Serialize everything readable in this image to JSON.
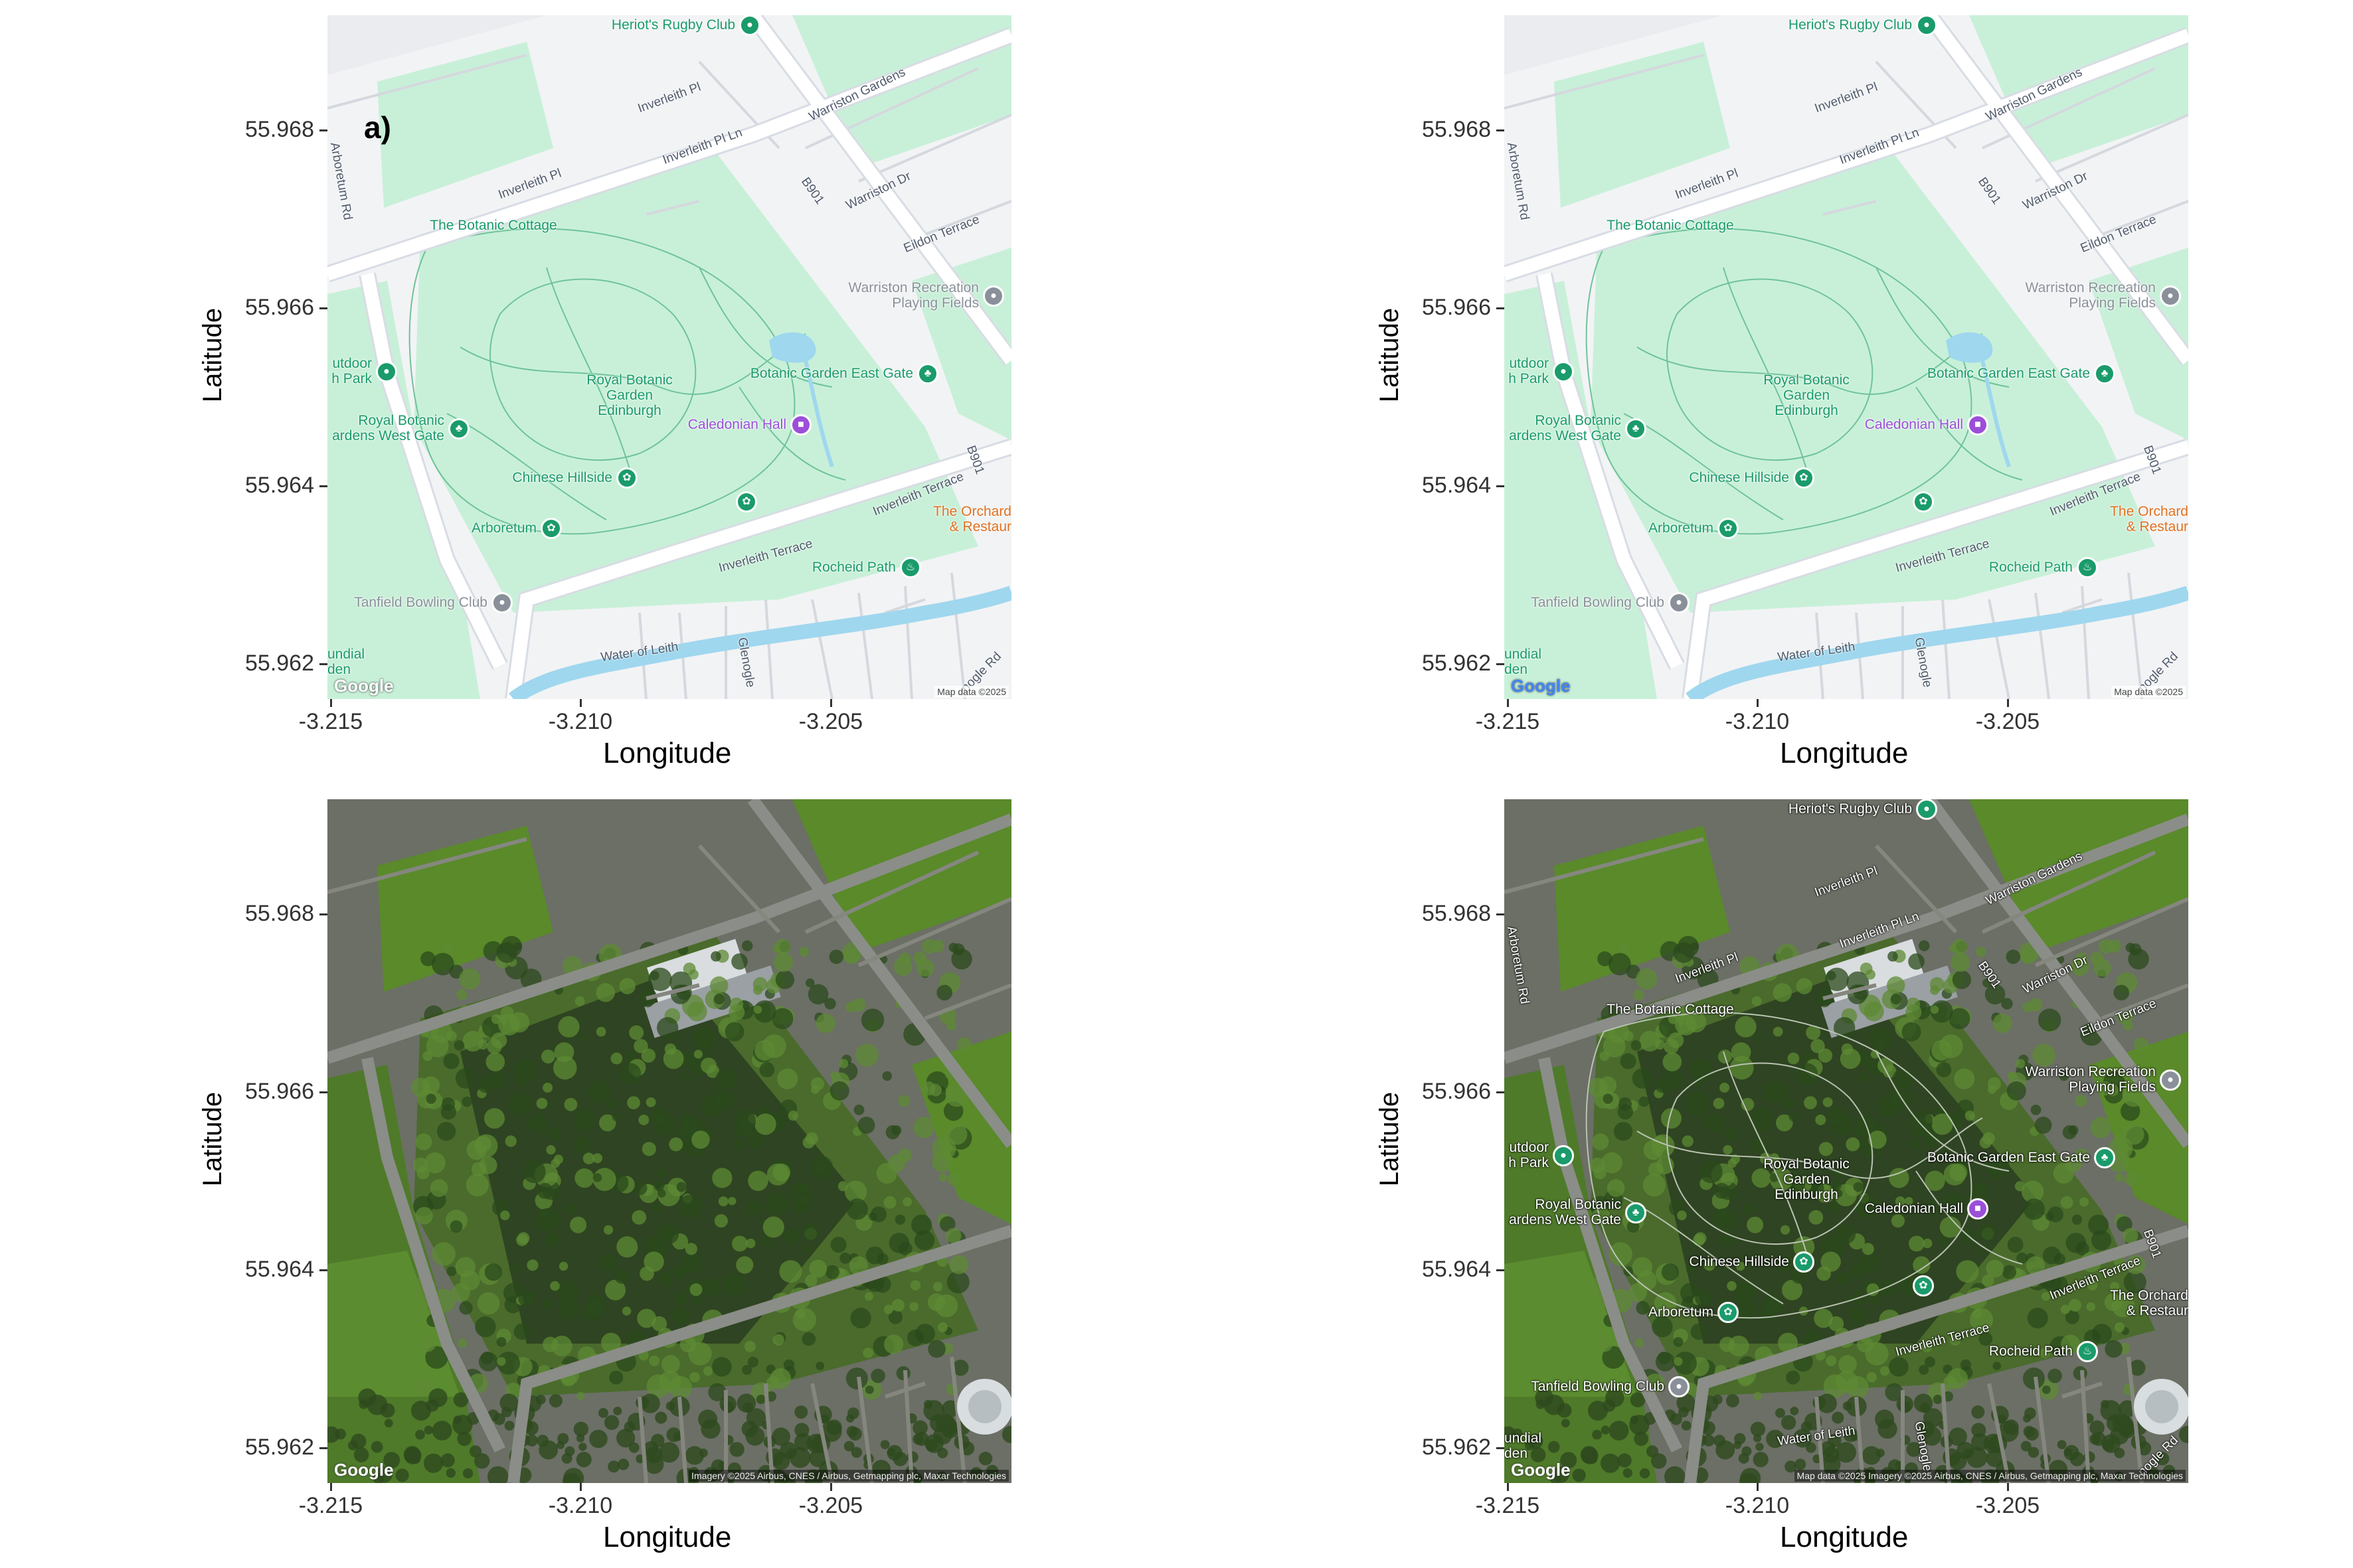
{
  "panels": [
    {
      "id": "a",
      "label": "a)",
      "style": "roadmap",
      "attribution": "Map data ©2025"
    },
    {
      "id": "b",
      "label": "",
      "style": "roadmap",
      "attribution": "Map data ©2025"
    },
    {
      "id": "c",
      "label": "",
      "style": "satellite",
      "attribution": "Imagery ©2025 Airbus, CNES / Airbus, Getmapping plc, Maxar Technologies"
    },
    {
      "id": "d",
      "label": "",
      "style": "hybrid",
      "attribution": "Map data ©2025 Imagery ©2025 Airbus, CNES / Airbus, Getmapping plc, Maxar Technologies"
    }
  ],
  "axes": {
    "xlabel": "Longitude",
    "ylabel": "Latitude",
    "xticks": [
      "-3.215",
      "-3.210",
      "-3.205"
    ],
    "yticks": [
      "55.968",
      "55.966",
      "55.964",
      "55.962"
    ]
  },
  "google_logo": "Google",
  "pois": {
    "heriots": "Heriot's Rugby Club",
    "botanic_cottage": "The Botanic Cottage",
    "warriston_rec_1": "Warriston Recreation",
    "warriston_rec_2": "Playing Fields",
    "outdoor_1": "utdoor",
    "outdoor_2": "h Park",
    "rbg_center_1": "Royal Botanic",
    "rbg_center_2": "Garden",
    "rbg_center_3": "Edinburgh",
    "east_gate": "Botanic Garden East Gate",
    "west_gate_1": "Royal Botanic",
    "west_gate_2": "ardens West Gate",
    "caledonian": "Caledonian Hall",
    "chinese": "Chinese Hillside",
    "arboretum": "Arboretum",
    "orchard_1": "The Orchard",
    "orchard_2": "& Restaur",
    "rocheid": "Rocheid Path",
    "tanfield": "Tanfield Bowling Club",
    "sundial_1": "undial",
    "sundial_2": "den"
  },
  "streets": {
    "inverleith_pl_1": "Inverleith Pl",
    "inverleith_pl_2": "Inverleith Pl",
    "inverleith_pl_ln": "Inverleith Pl Ln",
    "warriston_gdns": "Warriston Gardens",
    "warriston_dr": "Warriston Dr",
    "eildon": "Eildon Terrace",
    "b901_1": "B901",
    "b901_2": "B901",
    "arboretum_rd": "Arboretum Rd",
    "inverleith_terrace_1": "Inverleith Terrace",
    "inverleith_terrace_2": "Inverleith Terrace",
    "water_of_leith": "Water of Leith",
    "glenogle": "Glenogle",
    "glenogle_rd": "nogle Rd"
  },
  "colors": {
    "park": "#c8f0d8",
    "park_dark": "#bfe9cf",
    "road": "#ffffff",
    "road_major": "#d8dce4",
    "water": "#9fd7ee",
    "land": "#f2f3f5",
    "poi_green": "#1a9b6b",
    "poi_purple": "#9b4fd8",
    "poi_orange": "#e0701f",
    "poi_gray": "#8a9099",
    "sat_dark": "#2f4422",
    "sat_green": "#4a6b2c",
    "sat_field": "#5a8a2a"
  },
  "icons": [
    "pin-icon",
    "tree-icon",
    "flower-icon",
    "lock-icon",
    "restaurant-icon"
  ]
}
